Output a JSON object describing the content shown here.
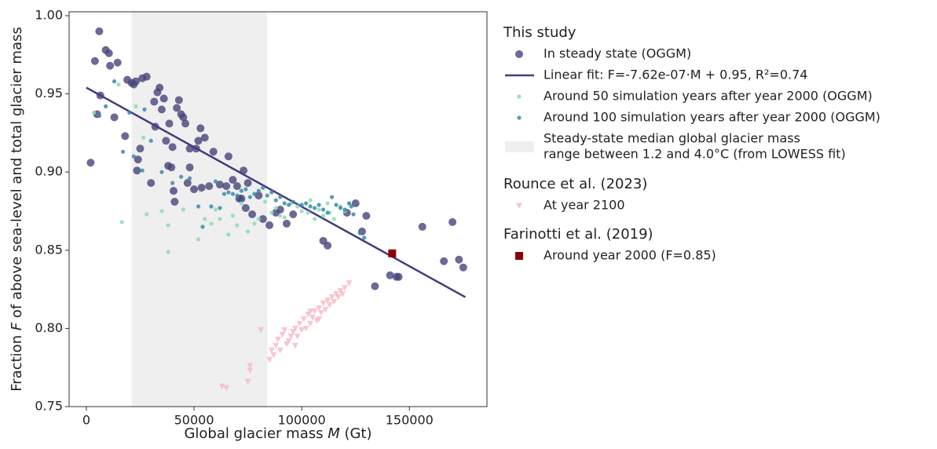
{
  "chart_data": {
    "type": "scatter",
    "xlabel": [
      "Global glacier mass ",
      "M",
      " (Gt)"
    ],
    "ylabel": [
      "Fraction ",
      "F",
      " of above sea-level and total glacier mass"
    ],
    "xlim": [
      -8000,
      186000
    ],
    "ylim": [
      0.75,
      1.0025
    ],
    "xticks": [
      0,
      50000,
      100000,
      150000
    ],
    "yticks": [
      0.75,
      {
        "value": 0.8,
        "label": "0.80"
      },
      0.85,
      {
        "value": 0.9,
        "label": "0.90"
      },
      0.95,
      {
        "value": 1.0,
        "label": "1.00"
      }
    ],
    "legend_position": "outside right",
    "groups": [
      {
        "title": "This study",
        "series": [
          {
            "type": "scatter",
            "name": "In steady state (OGGM)",
            "marker": "o",
            "color": "#47437a",
            "x": [
              2000,
              4000,
              5000,
              6000,
              6500,
              9000,
              10500,
              11000,
              13000,
              14500,
              18000,
              19000,
              21000,
              22000,
              23000,
              23500,
              24000,
              25000,
              26000,
              28000,
              30000,
              31500,
              32000,
              33000,
              34000,
              35000,
              36000,
              37000,
              38000,
              38500,
              39500,
              40000,
              40500,
              41000,
              42000,
              43000,
              44000,
              45000,
              46000,
              47000,
              48000,
              48000,
              50000,
              51000,
              52000,
              53000,
              53500,
              55000,
              57000,
              59000,
              62000,
              65000,
              66000,
              68000,
              70000,
              71000,
              72000,
              73000,
              74000,
              75000,
              77000,
              80000,
              82000,
              85000,
              88000,
              90000,
              93000,
              96000,
              110000,
              112000,
              121000,
              125000,
              128000,
              130000,
              134000,
              141000,
              144000,
              145000,
              156000,
              166000,
              170000,
              173000,
              175000
            ],
            "values": [
              0.906,
              0.971,
              0.937,
              0.99,
              0.949,
              0.978,
              0.976,
              0.968,
              0.935,
              0.97,
              0.923,
              0.959,
              0.957,
              0.956,
              0.958,
              0.901,
              0.908,
              0.915,
              0.96,
              0.961,
              0.893,
              0.945,
              0.929,
              0.951,
              0.954,
              0.94,
              0.947,
              0.92,
              0.904,
              0.931,
              0.903,
              0.916,
              0.888,
              0.881,
              0.941,
              0.946,
              0.937,
              0.935,
              0.931,
              0.893,
              0.915,
              0.903,
              0.889,
              0.915,
              0.92,
              0.928,
              0.89,
              0.922,
              0.891,
              0.913,
              0.892,
              0.891,
              0.91,
              0.895,
              0.891,
              0.883,
              0.883,
              0.901,
              0.877,
              0.893,
              0.873,
              0.885,
              0.87,
              0.866,
              0.874,
              0.876,
              0.867,
              0.873,
              0.856,
              0.853,
              0.874,
              0.88,
              0.862,
              0.872,
              0.827,
              0.834,
              0.833,
              0.833,
              0.865,
              0.843,
              0.868,
              0.844,
              0.839
            ]
          },
          {
            "type": "line",
            "name": "Linear fit: F=-7.62e-07·M + 0.95, R²=0.74",
            "color": "#433d7c",
            "x": [
              0,
              176000
            ],
            "values": [
              0.954,
              0.82
            ]
          },
          {
            "type": "scatter",
            "name": "Around 50 simulation years after year 2000 (OGGM)",
            "marker": ".",
            "color": "#8dd9b6",
            "x": [
              3500,
              15000,
              16500,
              23000,
              26500,
              28000,
              35000,
              38000,
              38000,
              45000,
              52000,
              55000,
              58000,
              60000,
              62000,
              66000,
              68000,
              70000,
              72000,
              75000,
              78000,
              80000,
              83000,
              86000,
              88000,
              90000,
              92000,
              95000,
              98000,
              100000,
              103000,
              106000,
              108000,
              110000,
              113000,
              115000,
              118000,
              120000,
              122000,
              104000,
              112000
            ],
            "values": [
              0.938,
              0.956,
              0.868,
              0.942,
              0.922,
              0.873,
              0.875,
              0.849,
              0.866,
              0.876,
              0.857,
              0.87,
              0.867,
              0.876,
              0.87,
              0.86,
              0.872,
              0.866,
              0.88,
              0.862,
              0.867,
              0.87,
              0.881,
              0.874,
              0.877,
              0.872,
              0.871,
              0.88,
              0.878,
              0.875,
              0.874,
              0.87,
              0.876,
              0.872,
              0.874,
              0.87,
              0.878,
              0.875,
              0.88,
              0.882,
              0.88
            ]
          },
          {
            "type": "scatter",
            "name": "Around 100 simulation years after year 2000 (OGGM)",
            "marker": ".",
            "color": "#3a8ca6",
            "x": [
              6000,
              9000,
              13000,
              17000,
              20000,
              22000,
              26000,
              27000,
              30000,
              35000,
              40000,
              44000,
              48000,
              52000,
              54000,
              58000,
              60000,
              62000,
              64000,
              66000,
              68000,
              70000,
              72000,
              74000,
              76000,
              78000,
              80000,
              82000,
              84000,
              86000,
              88000,
              90000,
              92000,
              94000,
              96000,
              100000,
              102000,
              104000,
              106000,
              108000,
              110000,
              112000,
              114000,
              116000,
              118000,
              120000,
              122000,
              123000,
              127000,
              129000,
              124000
            ],
            "values": [
              0.936,
              0.942,
              0.958,
              0.913,
              0.938,
              0.91,
              0.901,
              0.94,
              0.92,
              0.9,
              0.893,
              0.897,
              0.896,
              0.878,
              0.865,
              0.878,
              0.894,
              0.877,
              0.886,
              0.887,
              0.886,
              0.885,
              0.888,
              0.889,
              0.884,
              0.886,
              0.888,
              0.89,
              0.885,
              0.887,
              0.882,
              0.884,
              0.88,
              0.879,
              0.881,
              0.879,
              0.88,
              0.878,
              0.877,
              0.879,
              0.876,
              0.874,
              0.884,
              0.879,
              0.877,
              0.876,
              0.88,
              0.878,
              0.861,
              0.858,
              0.873
            ]
          },
          {
            "type": "span",
            "name_lines": [
              "Steady-state median global glacier mass",
              "range between 1.2 and 4.0°C (from LOWESS fit)"
            ],
            "color": "#efefef",
            "xmin": 21000,
            "xmax": 84000
          }
        ]
      },
      {
        "title": "Rounce et al. (2023)",
        "series": [
          {
            "type": "scatter",
            "name": "At year 2100",
            "marker": "v",
            "color": "#f7bcc7",
            "x": [
              63000,
              65000,
              75000,
              76000,
              76000,
              81000,
              85000,
              86000,
              87000,
              88000,
              89000,
              90000,
              91000,
              92000,
              93000,
              94000,
              95000,
              96000,
              97000,
              98000,
              99000,
              100000,
              101000,
              102000,
              103000,
              104000,
              105000,
              106000,
              107000,
              108000,
              109000,
              110000,
              111000,
              112000,
              113000,
              114000,
              115000,
              116000,
              117000,
              118000,
              119000,
              120000,
              122000,
              97000,
              104000,
              108000
            ],
            "values": [
              0.763,
              0.762,
              0.766,
              0.773,
              0.776,
              0.799,
              0.78,
              0.786,
              0.783,
              0.789,
              0.793,
              0.786,
              0.796,
              0.799,
              0.79,
              0.792,
              0.795,
              0.798,
              0.789,
              0.795,
              0.803,
              0.799,
              0.806,
              0.8,
              0.809,
              0.803,
              0.807,
              0.811,
              0.805,
              0.813,
              0.81,
              0.816,
              0.812,
              0.818,
              0.815,
              0.82,
              0.817,
              0.822,
              0.82,
              0.824,
              0.822,
              0.826,
              0.829,
              0.8,
              0.811,
              0.806
            ]
          }
        ]
      },
      {
        "title": "Farinotti et al. (2019)",
        "series": [
          {
            "type": "scatter",
            "name": "Around year 2000 (F=0.85)",
            "marker": "s",
            "color": "#8b0000",
            "x": [
              142000
            ],
            "values": [
              0.848
            ]
          }
        ]
      }
    ]
  }
}
